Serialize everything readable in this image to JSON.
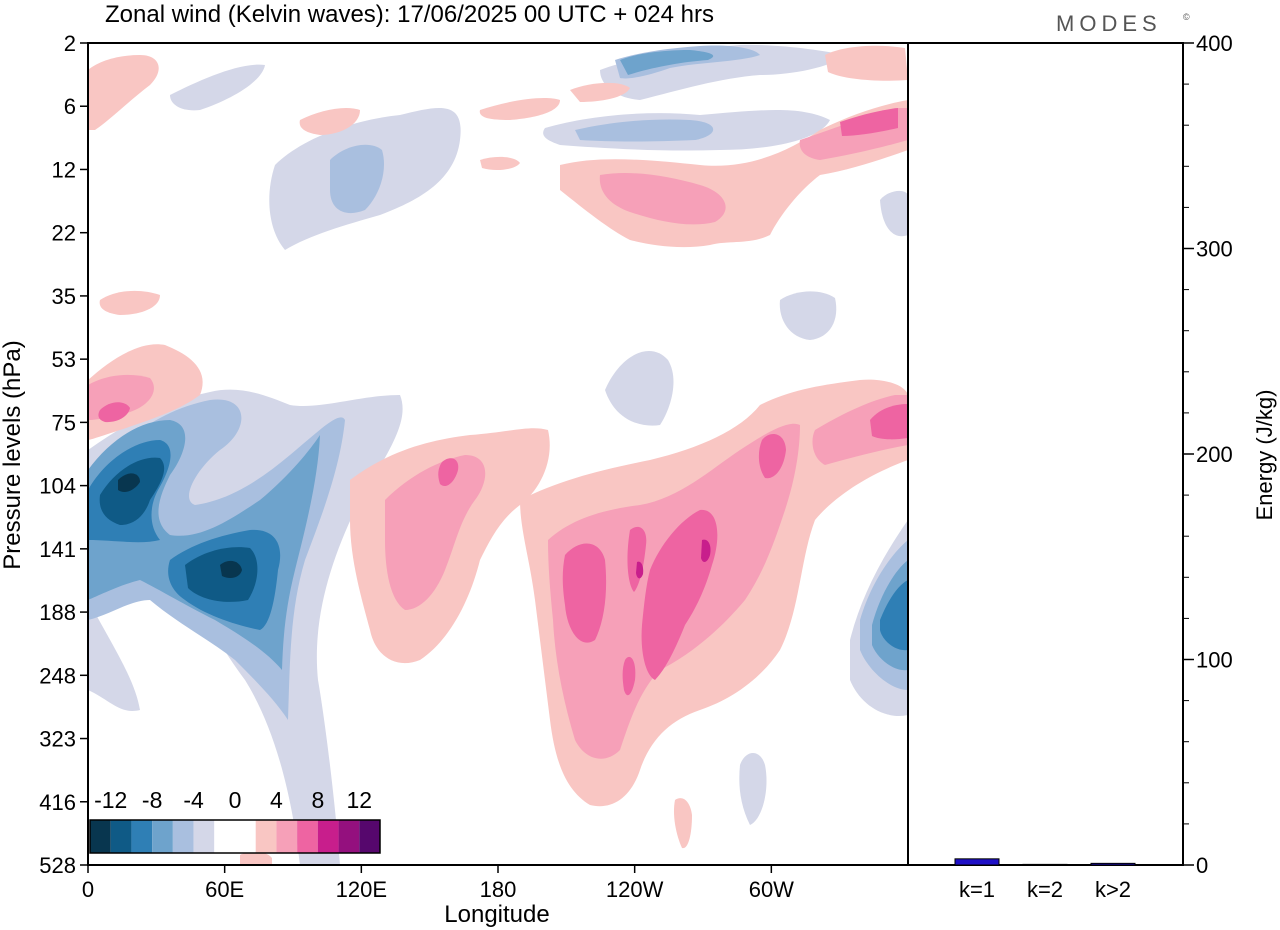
{
  "title": "Zonal wind (Kelvin waves):  17/06/2025  00 UTC  + 024 hrs",
  "brand": "MODES",
  "brand_mark": "©",
  "colors": {
    "neg": [
      "#08364f",
      "#0f5a86",
      "#2f7fb5",
      "#6ea3cc",
      "#a9bfdf",
      "#d4d7e8"
    ],
    "zero": "#ffffff",
    "pos": [
      "#f9c6c3",
      "#f6a0b8",
      "#ee64a2",
      "#c81e8c",
      "#94107e",
      "#56076d"
    ],
    "bar": "#1f10c7"
  },
  "chart_data": [
    {
      "type": "heatmap",
      "title": "Zonal wind (Kelvin waves):  17/06/2025  00 UTC  + 024 hrs",
      "xlabel": "Longitude",
      "ylabel": "Pressure levels (hPa)",
      "x_ticks": [
        "0",
        "60E",
        "120E",
        "180",
        "120W",
        "60W"
      ],
      "x_tick_values": [
        0,
        60,
        120,
        180,
        240,
        300
      ],
      "xlim": [
        0,
        360
      ],
      "y_ticks": [
        "2",
        "6",
        "12",
        "22",
        "35",
        "53",
        "75",
        "104",
        "141",
        "188",
        "248",
        "323",
        "416",
        "528"
      ],
      "colorbar": {
        "labels": [
          "-12",
          "-8",
          "-4",
          "0",
          "4",
          "8",
          "12"
        ],
        "label_values": [
          -12,
          -8,
          -4,
          0,
          4,
          8,
          12
        ],
        "levels": [
          -14,
          -12,
          -10,
          -8,
          -6,
          -4,
          -2,
          2,
          4,
          6,
          8,
          10,
          12,
          14
        ]
      },
      "features": [
        {
          "sign": "neg",
          "level": 6,
          "lon": 55,
          "p": 141,
          "desc": "strongest easterly core"
        },
        {
          "sign": "neg",
          "level": 5,
          "lon": 20,
          "p": 104
        },
        {
          "sign": "neg",
          "level": 3,
          "lon": 345,
          "p": 170
        },
        {
          "sign": "pos",
          "level": 3,
          "lon": 205,
          "p": 160
        },
        {
          "sign": "pos",
          "level": 4,
          "lon": 272,
          "p": 141
        },
        {
          "sign": "pos",
          "level": 3,
          "lon": 350,
          "p": 75
        },
        {
          "sign": "pos",
          "level": 3,
          "lon": 15,
          "p": 75
        },
        {
          "sign": "neg",
          "level": 3,
          "lon": 280,
          "p": 2
        }
      ]
    },
    {
      "type": "bar",
      "categories": [
        "k=1",
        "k=2",
        "k>2"
      ],
      "values": [
        3,
        0.3,
        0.8
      ],
      "ylabel": "Energy (J/kg)",
      "ylim": [
        0,
        400
      ],
      "y_ticks": [
        "0",
        "100",
        "200",
        "300",
        "400"
      ],
      "y_tick_values": [
        0,
        100,
        200,
        300,
        400
      ]
    }
  ]
}
